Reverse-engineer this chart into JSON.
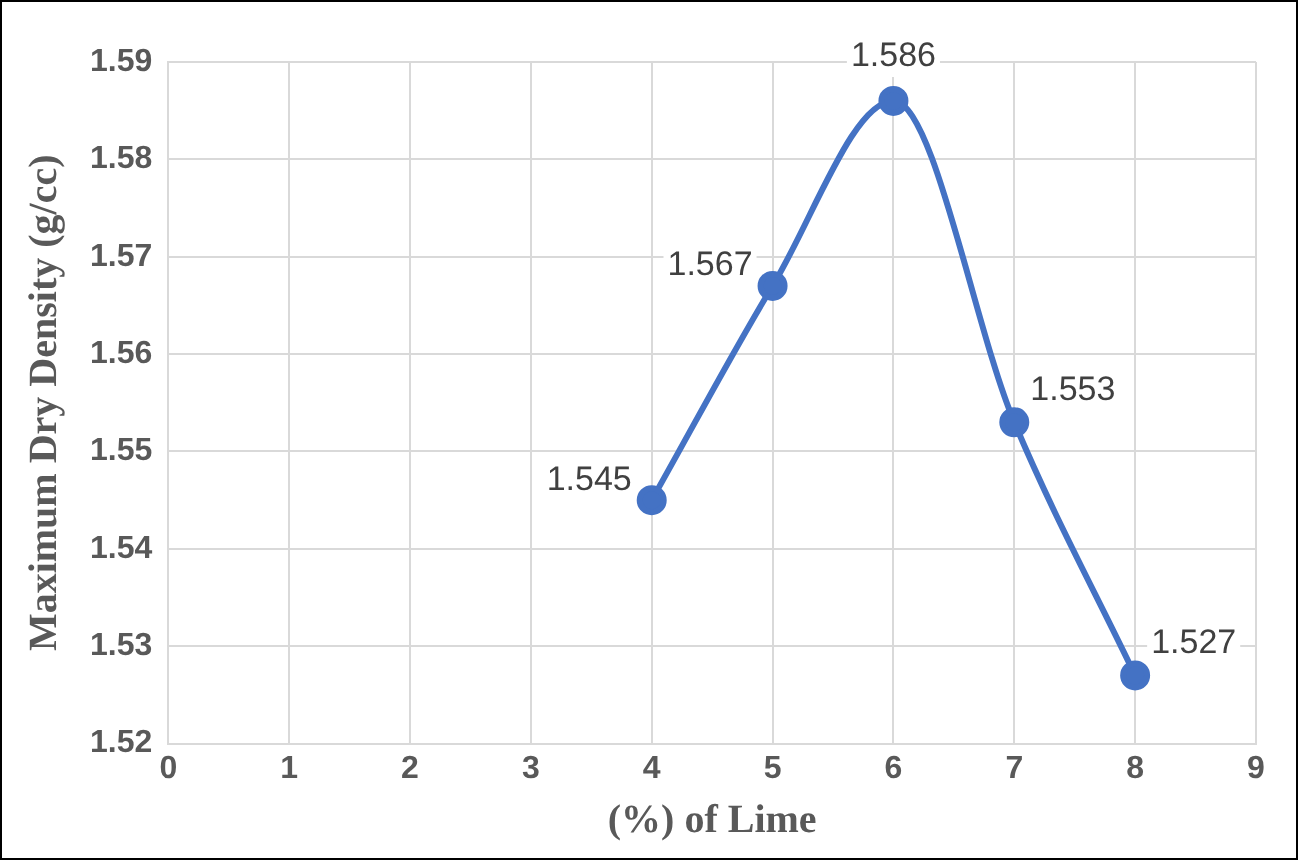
{
  "chart_data": {
    "type": "line",
    "xlabel": "(%) of Lime",
    "ylabel": "Maximum Dry Density (g/cc)",
    "x": [
      4,
      5,
      6,
      7,
      8
    ],
    "series": [
      {
        "color": "#4472c4",
        "values": [
          1.545,
          1.567,
          1.586,
          1.553,
          1.527
        ]
      }
    ],
    "xlim": [
      0,
      9
    ],
    "xticks": [
      0,
      1,
      2,
      3,
      4,
      5,
      6,
      7,
      8,
      9
    ],
    "ylim": [
      1.52,
      1.59
    ],
    "yticks": [
      {
        "value": 1.52,
        "label": "1.52"
      },
      {
        "value": 1.53,
        "label": "1.53"
      },
      {
        "value": 1.54,
        "label": "1.54"
      },
      {
        "value": 1.55,
        "label": "1.55"
      },
      {
        "value": 1.56,
        "label": "1.56"
      },
      {
        "value": 1.57,
        "label": "1.57"
      },
      {
        "value": 1.58,
        "label": "1.58"
      },
      {
        "value": 1.59,
        "label": "1.59"
      }
    ],
    "grid": true,
    "legend": false,
    "marker": "circle",
    "line_style": "solid",
    "data_labels": true
  }
}
